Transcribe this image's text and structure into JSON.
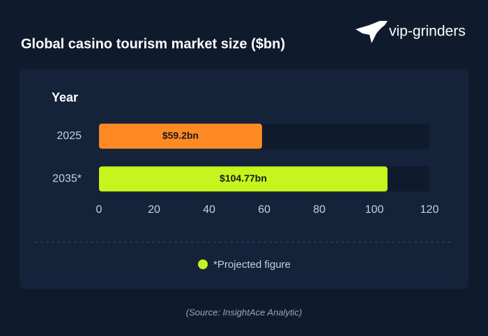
{
  "chart_data": {
    "type": "bar",
    "orientation": "horizontal",
    "title": "Global casino tourism market size ($bn)",
    "logo": "vip-grinders",
    "y_label": "Year",
    "categories": [
      "2025",
      "2035*"
    ],
    "values": [
      59.2,
      104.77
    ],
    "value_labels": [
      "$59.2bn",
      "$104.77bn"
    ],
    "colors": [
      "#ff8a24",
      "#c6f41d"
    ],
    "xlim": [
      0,
      120
    ],
    "xticks": [
      0,
      20,
      40,
      60,
      80,
      100,
      120
    ],
    "note": {
      "text": "*Projected figure",
      "color": "#c6f41d"
    },
    "source": "(Source: InsightAce Analytic)"
  }
}
